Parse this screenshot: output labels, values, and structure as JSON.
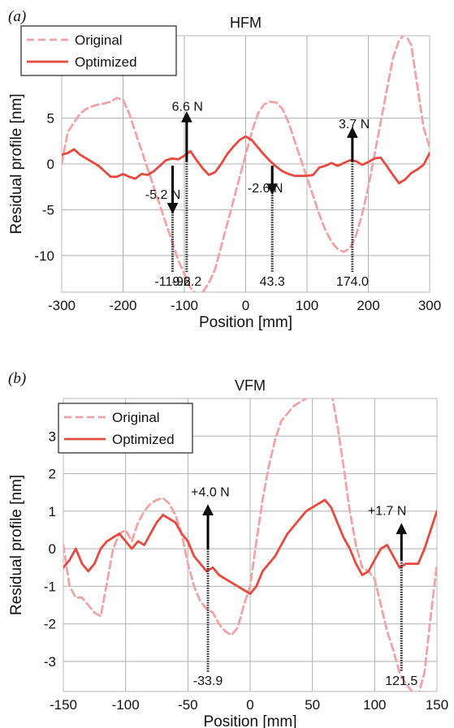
{
  "chart_data": [
    {
      "panel": "(a)",
      "type": "line",
      "title": "HFM",
      "xlabel": "Position [mm]",
      "ylabel": "Residual profile [nm]",
      "xlim": [
        -300,
        300
      ],
      "ylim": [
        -14,
        14
      ],
      "xticks": [
        "-300",
        "-200",
        "-100",
        "0",
        "100",
        "200",
        "300"
      ],
      "yticks": [
        "-10",
        "-5",
        "0",
        "5"
      ],
      "ytick_values": [
        -10,
        -5,
        0,
        5
      ],
      "grid": true,
      "legend": "top-left",
      "series": [
        {
          "name": "Original",
          "style": "dashed",
          "color": "#f2a3a8",
          "x": [
            -300,
            -290,
            -280,
            -270,
            -260,
            -250,
            -240,
            -230,
            -220,
            -210,
            -200,
            -190,
            -180,
            -170,
            -160,
            -150,
            -140,
            -130,
            -120,
            -110,
            -100,
            -90,
            -80,
            -70,
            -60,
            -50,
            -40,
            -30,
            -20,
            -10,
            0,
            10,
            20,
            30,
            40,
            50,
            60,
            70,
            80,
            90,
            100,
            110,
            120,
            130,
            140,
            150,
            160,
            170,
            180,
            190,
            200,
            210,
            220,
            230,
            240,
            250,
            260,
            270,
            280,
            290,
            300
          ],
          "y": [
            0,
            3.5,
            4.5,
            5.5,
            6,
            6.3,
            6.5,
            6.6,
            6.8,
            7.2,
            7,
            5.5,
            3.5,
            1.5,
            -0.5,
            -2.5,
            -4.5,
            -6.5,
            -8.5,
            -10.5,
            -12,
            -13.5,
            -14.3,
            -14,
            -13,
            -11.5,
            -9,
            -6.5,
            -4,
            -1.5,
            1,
            3.5,
            5.5,
            6.5,
            6.8,
            6.7,
            6,
            4.5,
            2.5,
            0.5,
            -1.5,
            -3.5,
            -5.5,
            -7.2,
            -8.5,
            -9.3,
            -9.6,
            -9.2,
            -7.8,
            -5.5,
            -2.5,
            1,
            4.5,
            8,
            11.5,
            13.5,
            14.2,
            13,
            8.5,
            4,
            1.8
          ]
        },
        {
          "name": "Optimized",
          "style": "solid",
          "color": "#e8493e",
          "x": [
            -300,
            -290,
            -280,
            -270,
            -260,
            -250,
            -240,
            -230,
            -220,
            -210,
            -200,
            -190,
            -180,
            -170,
            -160,
            -150,
            -140,
            -130,
            -120,
            -110,
            -100,
            -90,
            -80,
            -70,
            -60,
            -50,
            -40,
            -30,
            -20,
            -10,
            0,
            10,
            20,
            30,
            40,
            50,
            60,
            70,
            80,
            90,
            100,
            110,
            120,
            130,
            140,
            150,
            160,
            170,
            180,
            190,
            200,
            210,
            220,
            230,
            240,
            250,
            260,
            270,
            280,
            290,
            300
          ],
          "y": [
            1,
            1.2,
            1.6,
            1,
            0.6,
            0.2,
            -0.2,
            -0.8,
            -1.4,
            -1.4,
            -1.1,
            -1.4,
            -1.6,
            -1.1,
            -1.2,
            -0.8,
            -0.2,
            0.4,
            0.6,
            0.5,
            0.9,
            1.4,
            0.4,
            -0.5,
            -1.2,
            -0.9,
            0,
            1.1,
            1.9,
            2.6,
            3,
            2.6,
            1.8,
            1,
            0.3,
            -0.3,
            -0.8,
            -1.1,
            -1.3,
            -1.3,
            -1.3,
            -1.2,
            -0.4,
            -0.2,
            0.1,
            -0.2,
            0.1,
            0.4,
            0.3,
            -0.1,
            0.2,
            0.6,
            0.7,
            -0.2,
            -1.2,
            -2.1,
            -1.7,
            -1,
            -0.6,
            -0.1,
            1.2
          ]
        }
      ],
      "annotations": [
        {
          "x": -119.2,
          "label": "-119.2",
          "force": "-5.2 N",
          "direction": "down",
          "y_start": -0.2,
          "y_end": -4.3,
          "label_x": -135,
          "label_y": -3.8
        },
        {
          "x": -96.2,
          "label": "-96.2",
          "force": "6.6 N",
          "direction": "up",
          "y_start": 0.3,
          "y_end": 4.6,
          "label_x": -95,
          "label_y": 5.8
        },
        {
          "x": 43.3,
          "label": "43.3",
          "force": "-2.6 N",
          "direction": "down",
          "y_start": -0.2,
          "y_end": -2.2,
          "label_x": 32,
          "label_y": -3.1
        },
        {
          "x": 174.0,
          "label": "174.0",
          "force": "3.7 N",
          "direction": "up",
          "y_start": 0.3,
          "y_end": 2.9,
          "label_x": 177,
          "label_y": 3.9
        }
      ]
    },
    {
      "panel": "(b)",
      "type": "line",
      "title": "VFM",
      "xlabel": "Position [mm]",
      "ylabel": "Residual profile [nm]",
      "xlim": [
        -150,
        150
      ],
      "ylim": [
        -3.8,
        4
      ],
      "xticks": [
        "-150",
        "-100",
        "-50",
        "0",
        "50",
        "100",
        "150"
      ],
      "yticks": [
        "-3",
        "-2",
        "-1",
        "0",
        "1",
        "2",
        "3"
      ],
      "ytick_values": [
        -3,
        -2,
        -1,
        0,
        1,
        2,
        3
      ],
      "grid": true,
      "legend": "top-left",
      "series": [
        {
          "name": "Original",
          "style": "dashed",
          "color": "#f2a3a8",
          "x": [
            -150,
            -145,
            -140,
            -135,
            -130,
            -125,
            -120,
            -115,
            -110,
            -105,
            -100,
            -95,
            -90,
            -85,
            -80,
            -75,
            -70,
            -65,
            -60,
            -55,
            -50,
            -45,
            -40,
            -35,
            -30,
            -25,
            -20,
            -15,
            -10,
            -5,
            0,
            5,
            10,
            15,
            20,
            25,
            30,
            35,
            40,
            45,
            50,
            55,
            60,
            65,
            70,
            75,
            80,
            85,
            90,
            95,
            100,
            105,
            110,
            115,
            120,
            125,
            130,
            135,
            140,
            145,
            150
          ],
          "y": [
            0.1,
            -1,
            -1.3,
            -1.3,
            -1.5,
            -1.7,
            -1.8,
            -0.9,
            0,
            0.4,
            0.5,
            0.2,
            0.7,
            1,
            1.2,
            1.3,
            1.35,
            1.2,
            0.9,
            0.4,
            -0.4,
            -1,
            -1.4,
            -1.6,
            -1.7,
            -2,
            -2.2,
            -2.3,
            -2.1,
            -1.5,
            -1,
            0.2,
            1.3,
            2.2,
            2.9,
            3.4,
            3.6,
            3.8,
            3.9,
            4,
            4.1,
            4.3,
            4.5,
            4.2,
            3.3,
            2.2,
            1,
            0.1,
            -0.5,
            -0.6,
            -0.8,
            -1.5,
            -2.2,
            -2.7,
            -3.3,
            -3.6,
            -3.8,
            -3.9,
            -3.3,
            -1.8,
            -0.4
          ]
        },
        {
          "name": "Optimized",
          "style": "solid",
          "color": "#e8493e",
          "x": [
            -150,
            -145,
            -140,
            -135,
            -130,
            -125,
            -120,
            -115,
            -110,
            -105,
            -100,
            -95,
            -90,
            -85,
            -80,
            -75,
            -70,
            -65,
            -60,
            -55,
            -50,
            -45,
            -40,
            -35,
            -30,
            -25,
            -20,
            -15,
            -10,
            -5,
            0,
            5,
            10,
            15,
            20,
            25,
            30,
            35,
            40,
            45,
            50,
            55,
            60,
            65,
            70,
            75,
            80,
            85,
            90,
            95,
            100,
            105,
            110,
            115,
            120,
            125,
            130,
            135,
            140,
            145,
            150
          ],
          "y": [
            -0.5,
            -0.3,
            0,
            -0.4,
            -0.6,
            -0.4,
            0,
            0.2,
            0.3,
            0.4,
            0.2,
            0,
            0.2,
            0.1,
            0.4,
            0.7,
            0.9,
            0.8,
            0.7,
            0.4,
            0.2,
            -0.2,
            -0.4,
            -0.6,
            -0.5,
            -0.7,
            -0.8,
            -0.9,
            -1,
            -1.1,
            -1.2,
            -1,
            -0.6,
            -0.4,
            -0.2,
            0.1,
            0.4,
            0.6,
            0.8,
            1,
            1.1,
            1.2,
            1.3,
            1.1,
            0.7,
            0.3,
            0,
            -0.4,
            -0.7,
            -0.6,
            -0.3,
            0,
            0.1,
            -0.2,
            -0.5,
            -0.4,
            -0.4,
            -0.4,
            0,
            0.5,
            1
          ]
        }
      ],
      "annotations": [
        {
          "x": -33.9,
          "label": "-33.9",
          "force": "+4.0 N",
          "direction": "up",
          "y_start": 0,
          "y_end": 0.9,
          "label_x": -32,
          "label_y": 1.4
        },
        {
          "x": 121.5,
          "label": "121.5",
          "force": "+1.7 N",
          "direction": "up",
          "y_start": -0.3,
          "y_end": 0.4,
          "label_x": 110,
          "label_y": 0.9
        }
      ]
    }
  ]
}
